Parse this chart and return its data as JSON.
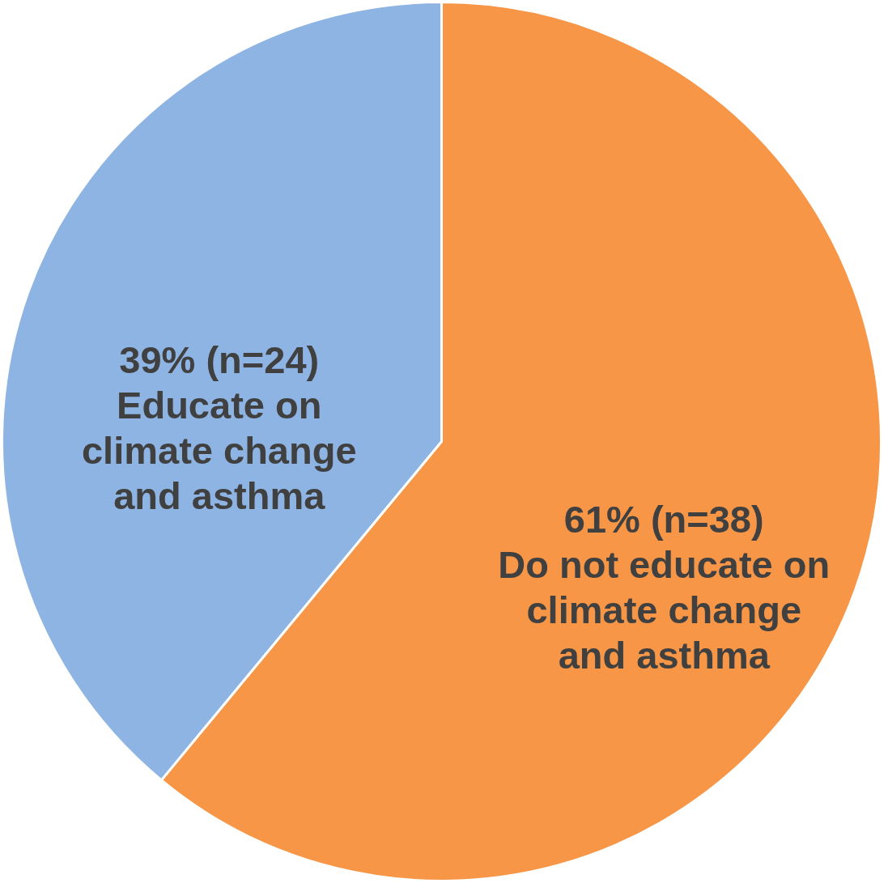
{
  "chart_data": {
    "type": "pie",
    "categories": [
      "Do not educate on climate change and asthma",
      "Educate on climate change and asthma"
    ],
    "values": [
      61,
      39
    ],
    "value_labels": [
      "61% (n=38)",
      "39% (n=24)"
    ],
    "colors": [
      "#f79646",
      "#8eb4e3"
    ]
  }
}
